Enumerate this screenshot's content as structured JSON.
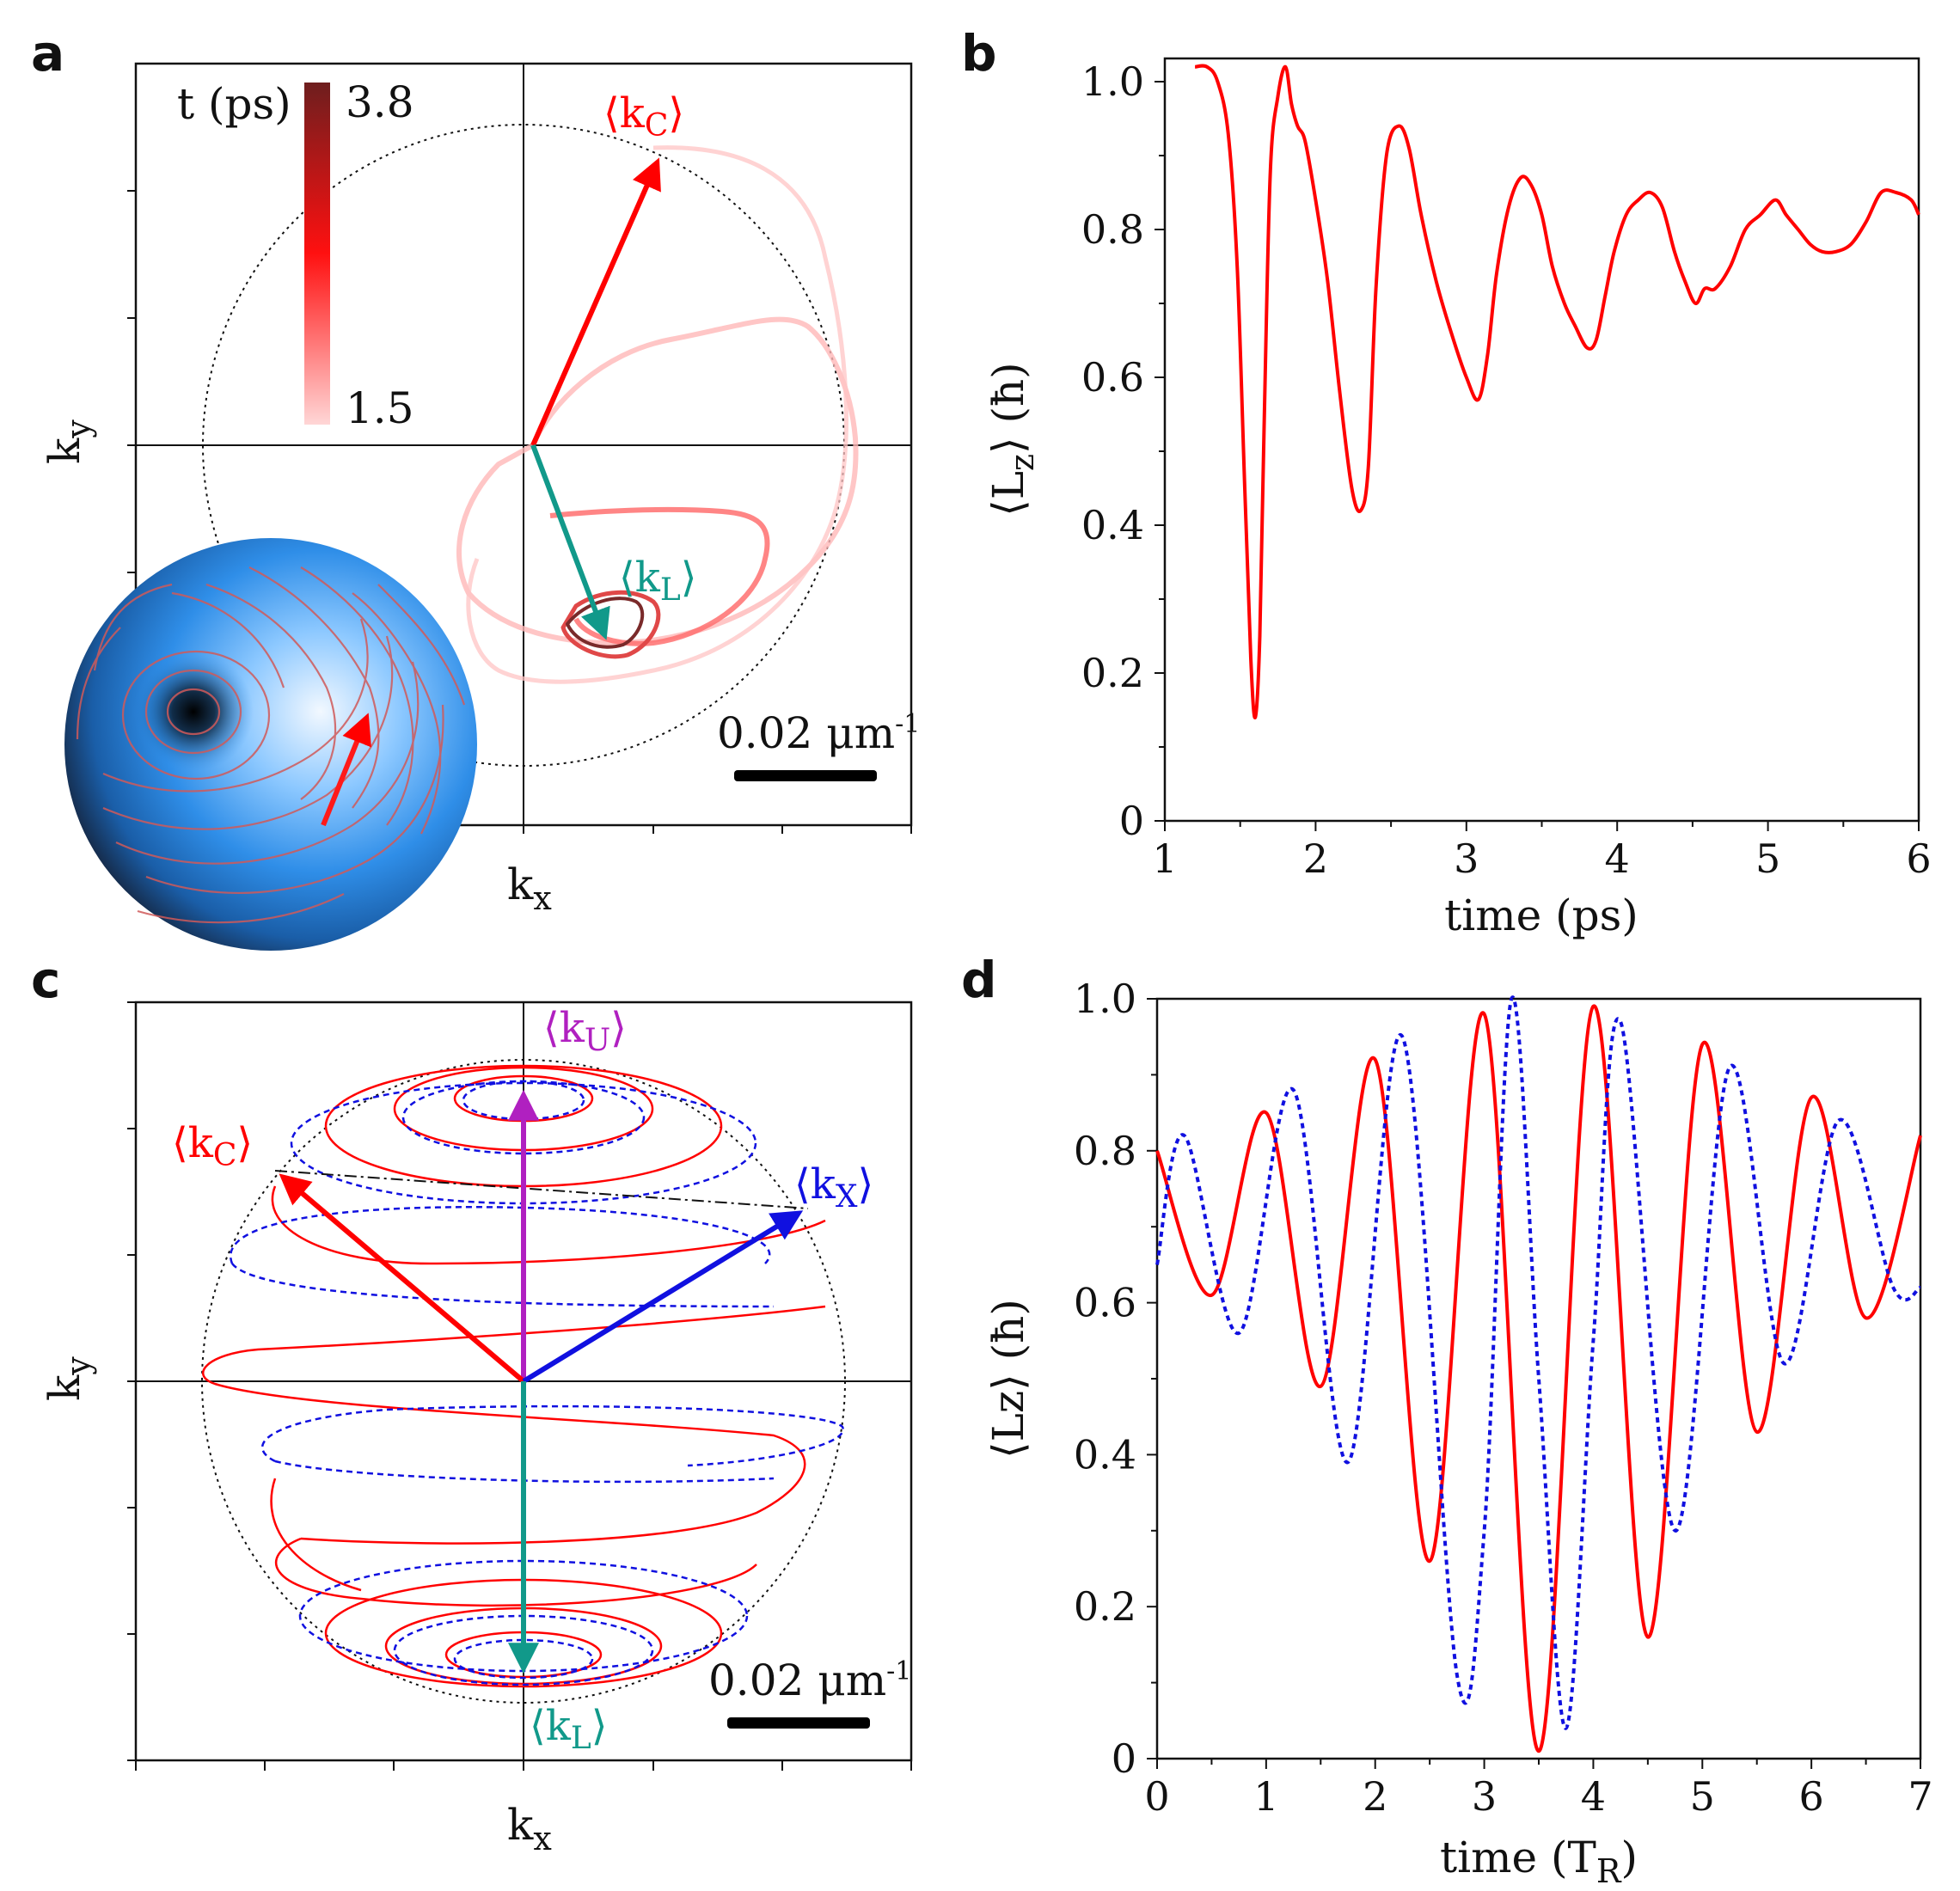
{
  "panels": {
    "a": {
      "letter": "a",
      "xlabel": "k",
      "xlabel_sub": "x",
      "ylabel": "k",
      "ylabel_sub": "y",
      "colorbar": {
        "label": "t (ps)",
        "max": "3.8",
        "min": "1.5",
        "color_low": "#ffd6d6",
        "color_mid": "#ff0000",
        "color_high": "#6e1e1e"
      },
      "vector_kc": {
        "pre": "⟨k",
        "sub": "C",
        "post": "⟩",
        "color": "#ff0000"
      },
      "vector_kl": {
        "pre": "⟨k",
        "sub": "L",
        "post": "⟩",
        "color": "#11998a"
      },
      "scalebar": {
        "pre": "0.02 μm",
        "sup": "-1"
      }
    },
    "b": {
      "letter": "b"
    },
    "c": {
      "letter": "c",
      "xlabel": "k",
      "xlabel_sub": "x",
      "ylabel": "k",
      "ylabel_sub": "y",
      "vector_ku": {
        "pre": "⟨k",
        "sub": "U",
        "post": "⟩",
        "color": "#b020c0"
      },
      "vector_kc": {
        "pre": "⟨k",
        "sub": "C",
        "post": "⟩",
        "color": "#ff0000"
      },
      "vector_kx": {
        "pre": "⟨k",
        "sub": "X",
        "post": "⟩",
        "color": "#1010e0"
      },
      "vector_kl": {
        "pre": "⟨k",
        "sub": "L",
        "post": "⟩",
        "color": "#11998a"
      },
      "scalebar": {
        "pre": "0.02 μm",
        "sup": "-1"
      }
    },
    "d": {
      "letter": "d"
    }
  },
  "chart_data": [
    {
      "panel": "b",
      "type": "line",
      "xlabel": "time (ps)",
      "ylabel": "⟨L",
      "ylabel_sub": "z",
      "ylabel_post": "⟩ (ħ)",
      "xlim": [
        1,
        6
      ],
      "ylim": [
        0,
        1.0
      ],
      "xticks": [
        1,
        2,
        3,
        4,
        5,
        6
      ],
      "yticks": [
        0,
        0.2,
        0.4,
        0.6,
        0.8,
        1.0
      ],
      "ytick_labels": [
        "0",
        "0.2",
        "0.4",
        "0.6",
        "0.8",
        "1.0"
      ],
      "series": [
        {
          "color": "#ff0000",
          "style": "solid",
          "x": [
            1.2,
            1.28,
            1.35,
            1.42,
            1.48,
            1.53,
            1.57,
            1.6,
            1.63,
            1.66,
            1.7,
            1.75,
            1.8,
            1.84,
            1.88,
            1.93,
            2.0,
            2.08,
            2.16,
            2.24,
            2.3,
            2.35,
            2.4,
            2.47,
            2.55,
            2.62,
            2.7,
            2.8,
            2.9,
            3.0,
            3.08,
            3.14,
            3.2,
            3.28,
            3.36,
            3.43,
            3.5,
            3.57,
            3.65,
            3.72,
            3.8,
            3.86,
            3.92,
            3.98,
            4.06,
            4.14,
            4.22,
            4.3,
            4.38,
            4.45,
            4.52,
            4.58,
            4.65,
            4.75,
            4.85,
            4.95,
            5.05,
            5.12,
            5.2,
            5.28,
            5.36,
            5.45,
            5.55,
            5.65,
            5.75,
            5.85,
            5.95,
            6.0
          ],
          "y": [
            1.02,
            1.02,
            1.0,
            0.93,
            0.75,
            0.45,
            0.22,
            0.14,
            0.25,
            0.55,
            0.88,
            0.98,
            1.02,
            0.97,
            0.94,
            0.92,
            0.84,
            0.73,
            0.58,
            0.45,
            0.42,
            0.48,
            0.72,
            0.9,
            0.94,
            0.91,
            0.82,
            0.73,
            0.66,
            0.6,
            0.57,
            0.63,
            0.74,
            0.83,
            0.87,
            0.86,
            0.82,
            0.75,
            0.7,
            0.67,
            0.64,
            0.65,
            0.71,
            0.77,
            0.82,
            0.84,
            0.85,
            0.83,
            0.77,
            0.73,
            0.7,
            0.72,
            0.72,
            0.75,
            0.8,
            0.82,
            0.84,
            0.82,
            0.8,
            0.78,
            0.77,
            0.77,
            0.78,
            0.81,
            0.85,
            0.85,
            0.84,
            0.82
          ]
        }
      ]
    },
    {
      "panel": "d",
      "type": "line",
      "xlabel": "time (T",
      "xlabel_sub": "R",
      "xlabel_post": ")",
      "ylabel": "⟨Lz⟩ (ħ)",
      "xlim": [
        0,
        7
      ],
      "ylim": [
        0,
        1.0
      ],
      "xticks": [
        0,
        1,
        2,
        3,
        4,
        5,
        6,
        7
      ],
      "yticks": [
        0,
        0.2,
        0.4,
        0.6,
        0.8,
        1.0
      ],
      "ytick_labels": [
        "0",
        "0.2",
        "0.4",
        "0.6",
        "0.8",
        "1.0"
      ],
      "series": [
        {
          "color": "#ff0000",
          "style": "solid",
          "x": [
            0,
            0.5,
            1.0,
            1.5,
            2.0,
            2.5,
            3.0,
            3.5,
            4.0,
            4.5,
            5.0,
            5.5,
            6.0,
            6.5,
            7.0
          ],
          "y": [
            0.8,
            0.61,
            0.85,
            0.49,
            0.92,
            0.26,
            0.98,
            0.01,
            0.99,
            0.16,
            0.94,
            0.43,
            0.87,
            0.58,
            0.82
          ]
        },
        {
          "color": "#1010e0",
          "style": "dotted",
          "x": [
            0,
            0.25,
            0.75,
            1.25,
            1.75,
            2.25,
            2.75,
            3.0,
            3.25,
            3.5,
            3.75,
            4.0,
            4.25,
            4.75,
            5.25,
            5.75,
            6.25,
            6.75,
            7.0
          ],
          "y": [
            0.65,
            0.82,
            0.56,
            0.88,
            0.39,
            0.95,
            0.11,
            0.3,
            1.0,
            0.5,
            0.04,
            0.55,
            0.97,
            0.3,
            0.91,
            0.52,
            0.84,
            0.62,
            0.62
          ]
        }
      ]
    }
  ]
}
